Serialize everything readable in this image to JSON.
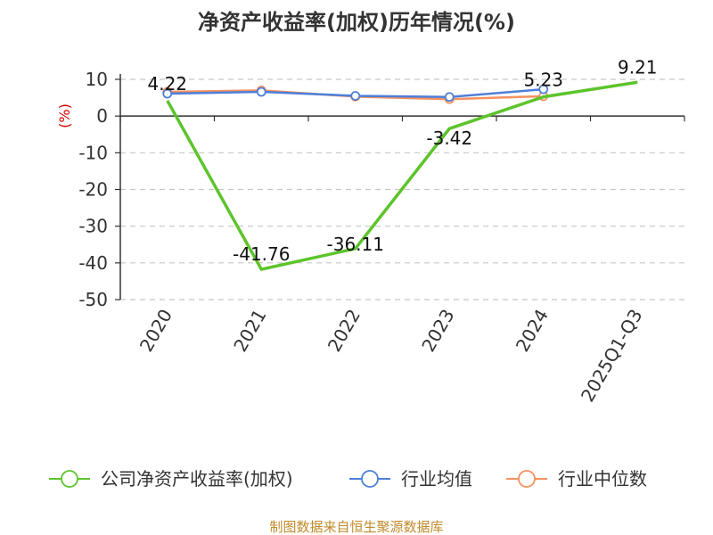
{
  "chart_data": {
    "type": "line",
    "title": "净资产收益率(加权)历年情况(%)",
    "ylabel": "(%)",
    "categories": [
      "2020",
      "2021",
      "2022",
      "2023",
      "2024",
      "2025Q1-Q3"
    ],
    "yticks": [
      10,
      0,
      -10,
      -20,
      -30,
      -40,
      -50
    ],
    "ylim": [
      -50,
      10
    ],
    "grid": true,
    "legend_position": "bottom",
    "series": [
      {
        "name": "公司净资产收益率(加权)",
        "color": "#5cc42b",
        "values": [
          4.22,
          -41.76,
          -36.11,
          -3.42,
          5.23,
          9.21
        ],
        "labels": [
          "4.22",
          "-41.76",
          "-36.11",
          "-3.42",
          "5.23",
          "9.21"
        ]
      },
      {
        "name": "行业均值",
        "color": "#4e7fd9",
        "values": [
          6.1,
          6.6,
          5.5,
          5.2,
          7.3,
          null
        ]
      },
      {
        "name": "行业中位数",
        "color": "#f59160",
        "values": [
          6.6,
          7.0,
          5.3,
          4.6,
          5.4,
          null
        ]
      }
    ]
  },
  "footer": {
    "source": "制图数据来自恒生聚源数据库"
  }
}
